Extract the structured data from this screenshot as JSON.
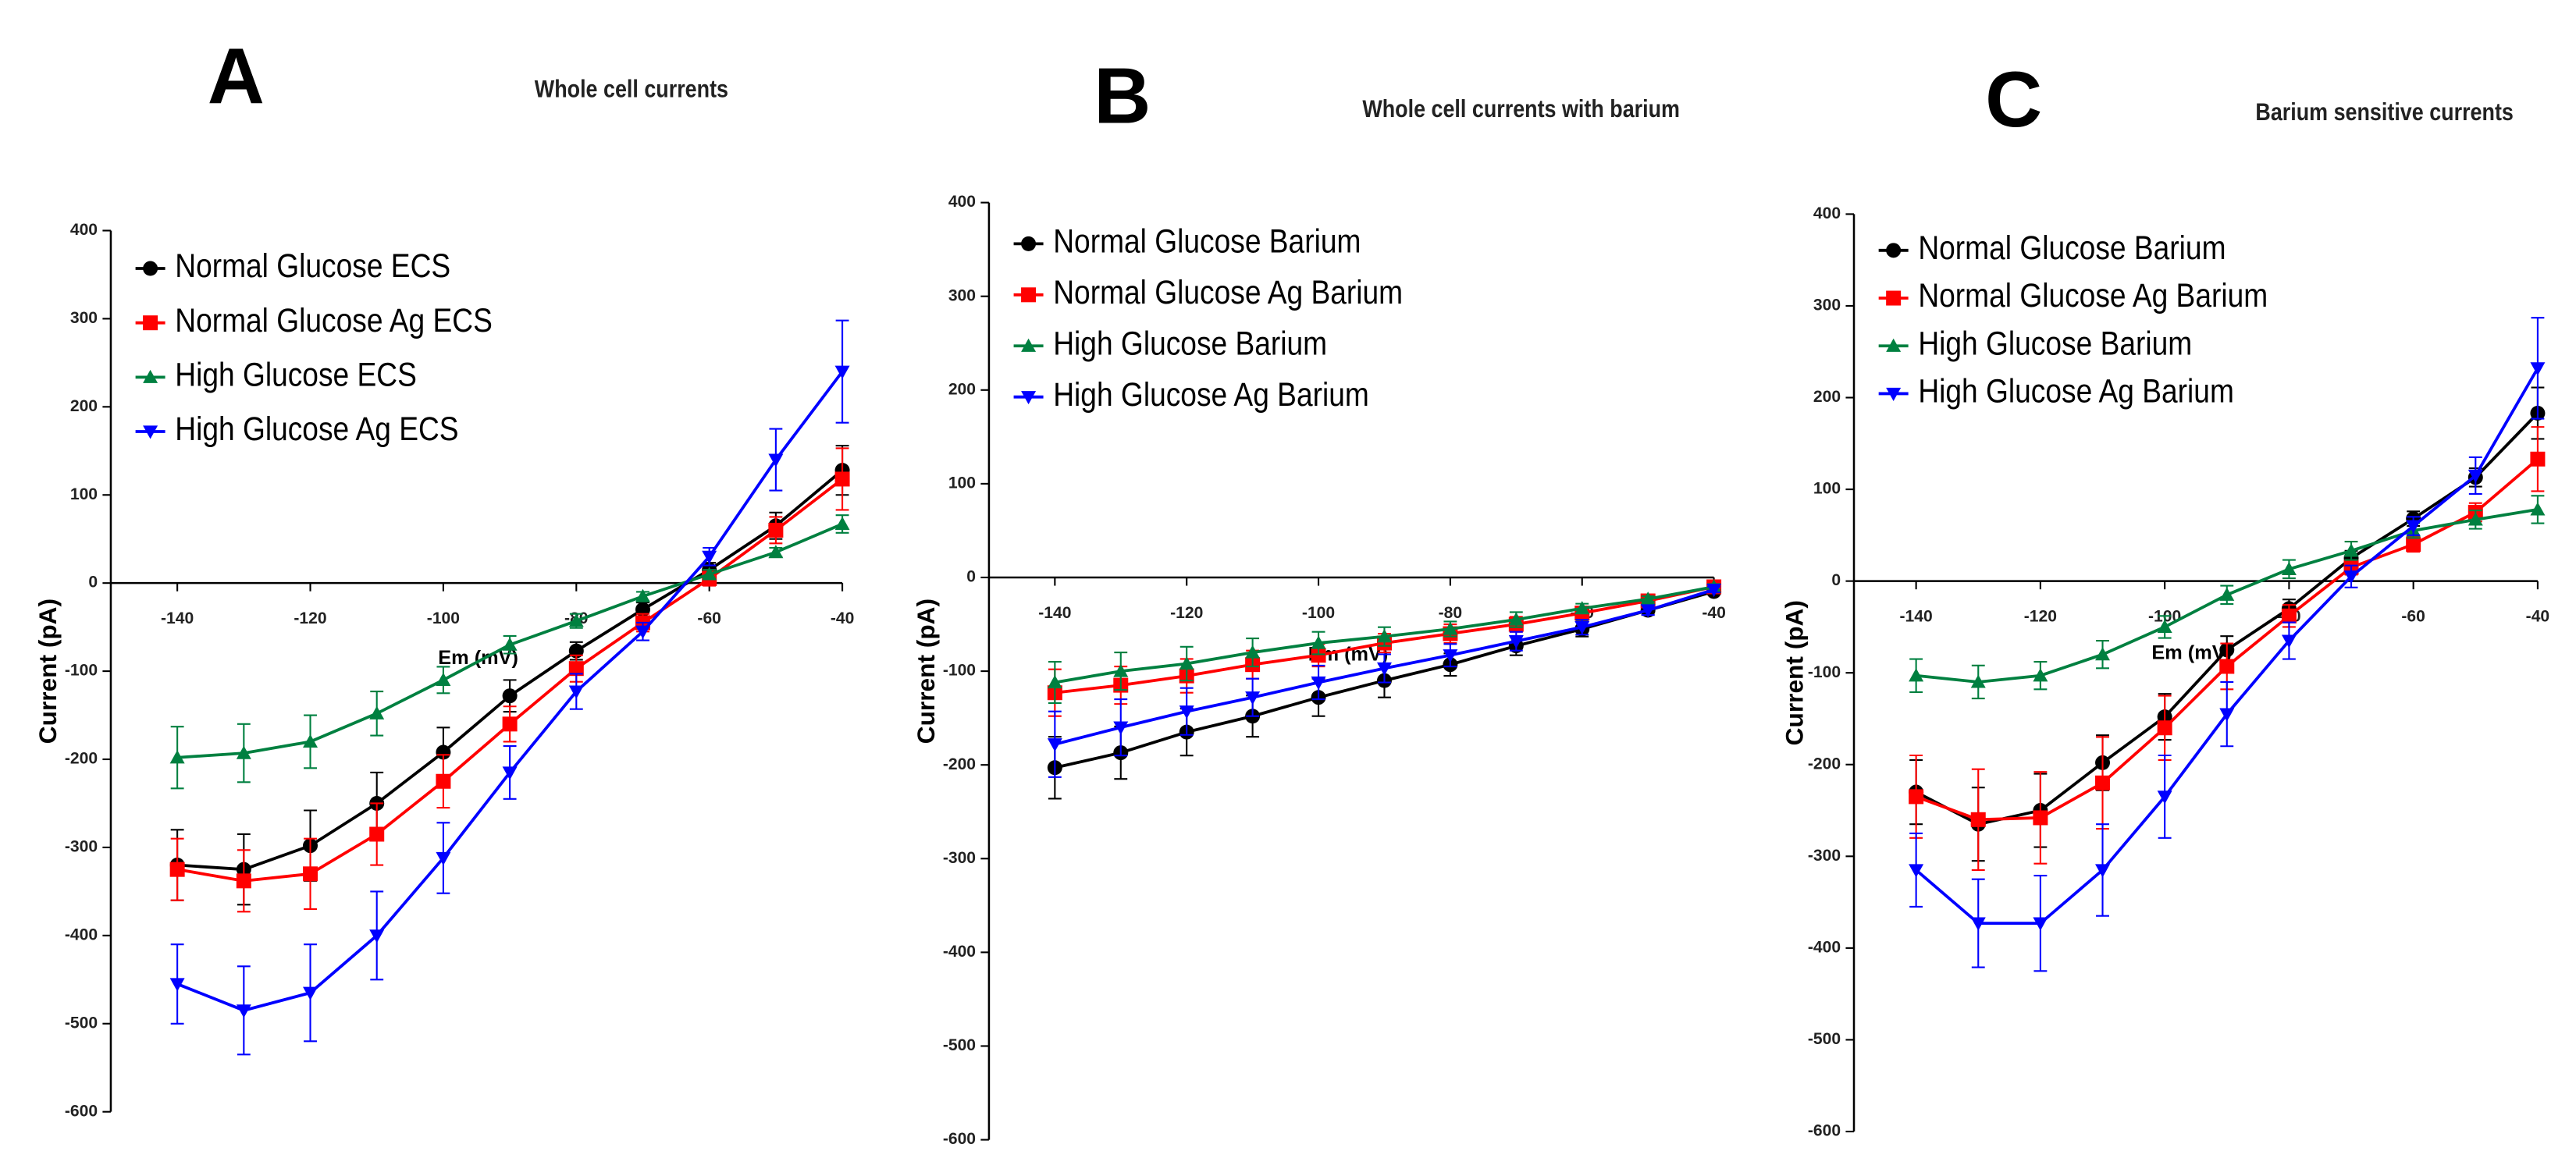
{
  "chart_data": [
    {
      "type": "line",
      "panel_label": "A",
      "title": "Whole cell currents",
      "xlabel": "Em (mV)",
      "ylabel": "Current (pA)",
      "x": [
        -140,
        -130,
        -120,
        -110,
        -100,
        -90,
        -80,
        -70,
        -60,
        -50,
        -40
      ],
      "xlim": [
        -150,
        -40
      ],
      "ylim": [
        -600,
        400
      ],
      "xticks": [
        -140,
        -120,
        -100,
        -80,
        -60,
        -40
      ],
      "yticks": [
        -600,
        -500,
        -400,
        -300,
        -200,
        -100,
        0,
        100,
        200,
        300,
        400
      ],
      "legend": "upper left",
      "series": [
        {
          "name": "Normal Glucose ECS",
          "color": "#000000",
          "marker": "circle",
          "values": [
            -320,
            -325,
            -298,
            -250,
            -192,
            -128,
            -77,
            -30,
            15,
            65,
            128
          ],
          "errors": [
            40,
            40,
            40,
            35,
            28,
            18,
            10,
            8,
            8,
            15,
            28
          ]
        },
        {
          "name": "Normal Glucose Ag ECS",
          "color": "#ff0000",
          "marker": "square",
          "values": [
            -325,
            -338,
            -330,
            -285,
            -225,
            -160,
            -97,
            -45,
            5,
            60,
            118
          ],
          "errors": [
            35,
            35,
            40,
            35,
            30,
            20,
            15,
            10,
            8,
            15,
            35
          ]
        },
        {
          "name": "High Glucose ECS",
          "color": "#008040",
          "marker": "triangle-up",
          "values": [
            -198,
            -193,
            -180,
            -148,
            -110,
            -70,
            -43,
            -15,
            10,
            35,
            67
          ],
          "errors": [
            35,
            33,
            30,
            25,
            15,
            10,
            8,
            5,
            5,
            5,
            10
          ]
        },
        {
          "name": "High Glucose Ag ECS",
          "color": "#0000ff",
          "marker": "triangle-down",
          "values": [
            -455,
            -485,
            -465,
            -400,
            -312,
            -215,
            -123,
            -55,
            30,
            140,
            240
          ],
          "errors": [
            45,
            50,
            55,
            50,
            40,
            30,
            20,
            10,
            10,
            35,
            58
          ]
        }
      ]
    },
    {
      "type": "line",
      "panel_label": "B",
      "title": "Whole cell currents with barium",
      "xlabel": "Em (mV)",
      "ylabel": "Current (pA)",
      "x": [
        -140,
        -130,
        -120,
        -110,
        -100,
        -90,
        -80,
        -70,
        -60,
        -50,
        -40
      ],
      "xlim": [
        -150,
        -40
      ],
      "ylim": [
        -600,
        400
      ],
      "xticks": [
        -140,
        -120,
        -100,
        -80,
        -60,
        -40
      ],
      "yticks": [
        -600,
        -500,
        -400,
        -300,
        -200,
        -100,
        0,
        100,
        200,
        300,
        400
      ],
      "legend": "upper left",
      "series": [
        {
          "name": "Normal Glucose Barium",
          "color": "#000000",
          "marker": "circle",
          "values": [
            -203,
            -187,
            -165,
            -148,
            -128,
            -110,
            -93,
            -73,
            -55,
            -35,
            -15
          ],
          "errors": [
            33,
            28,
            25,
            22,
            20,
            18,
            12,
            10,
            8,
            5,
            3
          ]
        },
        {
          "name": "Normal Glucose Ag Barium",
          "color": "#ff0000",
          "marker": "square",
          "values": [
            -123,
            -115,
            -105,
            -93,
            -83,
            -70,
            -60,
            -50,
            -38,
            -25,
            -10
          ],
          "errors": [
            25,
            20,
            18,
            15,
            12,
            10,
            10,
            8,
            5,
            5,
            3
          ]
        },
        {
          "name": "High Glucose Barium",
          "color": "#008040",
          "marker": "triangle-up",
          "values": [
            -112,
            -100,
            -92,
            -80,
            -70,
            -63,
            -55,
            -45,
            -33,
            -23,
            -10
          ],
          "errors": [
            22,
            20,
            18,
            15,
            12,
            10,
            8,
            8,
            5,
            3,
            3
          ]
        },
        {
          "name": "High Glucose Ag Barium",
          "color": "#0000ff",
          "marker": "triangle-down",
          "values": [
            -178,
            -160,
            -143,
            -128,
            -112,
            -97,
            -83,
            -68,
            -53,
            -35,
            -13
          ],
          "errors": [
            35,
            30,
            25,
            20,
            18,
            15,
            12,
            10,
            8,
            5,
            3
          ]
        }
      ]
    },
    {
      "type": "line",
      "panel_label": "C",
      "title": "Barium sensitive currents",
      "xlabel": "Em (mV)",
      "ylabel": "Current (pA)",
      "x": [
        -140,
        -130,
        -120,
        -110,
        -100,
        -90,
        -80,
        -70,
        -60,
        -50,
        -40
      ],
      "xlim": [
        -150,
        -40
      ],
      "ylim": [
        -600,
        400
      ],
      "xticks": [
        -140,
        -120,
        -100,
        -80,
        -60,
        -40
      ],
      "yticks": [
        -600,
        -500,
        -400,
        -300,
        -200,
        -100,
        0,
        100,
        200,
        300,
        400
      ],
      "legend": "upper left",
      "series": [
        {
          "name": "Normal Glucose Barium",
          "color": "#000000",
          "marker": "circle",
          "values": [
            -230,
            -265,
            -250,
            -198,
            -148,
            -75,
            -30,
            25,
            68,
            113,
            183
          ],
          "errors": [
            35,
            40,
            40,
            30,
            25,
            15,
            10,
            8,
            8,
            10,
            28
          ]
        },
        {
          "name": "Normal Glucose Ag Barium",
          "color": "#ff0000",
          "marker": "square",
          "values": [
            -235,
            -260,
            -258,
            -220,
            -160,
            -93,
            -38,
            15,
            40,
            75,
            133
          ],
          "errors": [
            45,
            55,
            50,
            50,
            35,
            25,
            12,
            8,
            8,
            10,
            35
          ]
        },
        {
          "name": "High Glucose Barium",
          "color": "#008040",
          "marker": "triangle-up",
          "values": [
            -103,
            -110,
            -103,
            -80,
            -50,
            -15,
            13,
            33,
            55,
            67,
            78
          ],
          "errors": [
            18,
            18,
            15,
            15,
            12,
            10,
            10,
            10,
            8,
            10,
            15
          ]
        },
        {
          "name": "High Glucose Ag Barium",
          "color": "#0000ff",
          "marker": "triangle-down",
          "values": [
            -315,
            -373,
            -373,
            -315,
            -235,
            -145,
            -65,
            5,
            60,
            115,
            232
          ],
          "errors": [
            40,
            48,
            52,
            50,
            45,
            35,
            20,
            12,
            10,
            20,
            55
          ]
        }
      ]
    }
  ]
}
